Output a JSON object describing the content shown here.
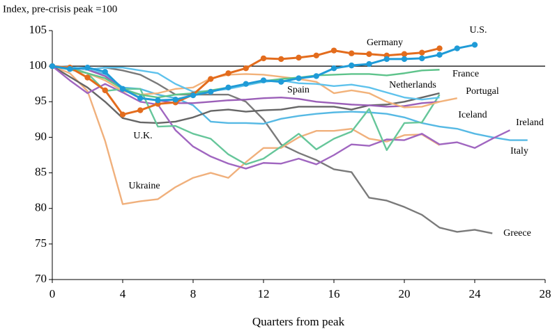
{
  "chart_data": {
    "type": "line",
    "title": "Index, pre-crisis peak =100",
    "x_label": "Quarters from peak",
    "xlim": [
      0,
      28
    ],
    "xticks": [
      0,
      4,
      8,
      12,
      16,
      20,
      24,
      28
    ],
    "ylim": [
      70,
      105
    ],
    "yticks": [
      70,
      75,
      80,
      85,
      90,
      95,
      100,
      105
    ],
    "reference_line": 100,
    "series": [
      {
        "name": "U.S.",
        "color": "#1f9bd7",
        "markers": true,
        "values": [
          100,
          99.6,
          99.8,
          99.2,
          96.8,
          95.5,
          95.2,
          95.3,
          95.9,
          96.4,
          97.0,
          97.5,
          98.0,
          97.8,
          98.3,
          98.6,
          99.7,
          100.1,
          100.3,
          101.0,
          101.0,
          101.1,
          101.6,
          102.5,
          103.0
        ]
      },
      {
        "name": "Germany",
        "color": "#e36c1d",
        "markers": true,
        "values": [
          100,
          99.8,
          98.4,
          96.6,
          93.2,
          93.8,
          94.7,
          94.9,
          96.0,
          98.2,
          99.0,
          99.7,
          101.1,
          101.0,
          101.2,
          101.5,
          102.2,
          101.8,
          101.7,
          101.5,
          101.7,
          101.9,
          102.5
        ]
      },
      {
        "name": "France",
        "color": "#5ec38b",
        "markers": false,
        "values": [
          100,
          99.8,
          99.0,
          98.3,
          96.8,
          96.0,
          95.6,
          96.0,
          96.2,
          96.6,
          97.0,
          97.5,
          97.9,
          98.2,
          98.4,
          98.7,
          98.8,
          98.9,
          98.9,
          98.7,
          99.0,
          99.4,
          99.5
        ]
      },
      {
        "name": "Netherlands",
        "color": "#5ec2ec",
        "markers": false,
        "values": [
          100,
          99.9,
          99.5,
          99.8,
          99.8,
          99.4,
          99.0,
          97.5,
          96.4,
          96.5,
          96.8,
          97.3,
          97.8,
          98.0,
          97.6,
          97.5,
          97.2,
          97.4,
          97.0,
          96.3,
          95.6,
          95.3,
          95.6
        ]
      },
      {
        "name": "Portugal",
        "color": "#f2b27a",
        "markers": false,
        "values": [
          100,
          99.7,
          99.0,
          98.0,
          96.5,
          96.0,
          96.2,
          96.8,
          97.0,
          98.3,
          98.8,
          98.9,
          98.8,
          98.5,
          98.2,
          97.8,
          96.2,
          96.6,
          96.2,
          95.0,
          94.2,
          94.3,
          95.0,
          95.5
        ]
      },
      {
        "name": "Spain",
        "color": "#9b5fb8",
        "markers": false,
        "values": [
          100,
          99.8,
          99.5,
          98.6,
          96.8,
          95.5,
          95.2,
          94.8,
          94.8,
          95.0,
          95.2,
          95.3,
          95.5,
          95.6,
          95.4,
          95.0,
          94.8,
          94.6,
          94.5,
          94.3,
          94.4,
          94.8,
          95.0
        ]
      },
      {
        "name": "Iceland",
        "color": "#66c69a",
        "markers": false,
        "values": [
          100,
          99.5,
          99.0,
          96.5,
          96.8,
          96.8,
          91.5,
          91.6,
          90.5,
          89.8,
          87.6,
          86.2,
          87.0,
          88.7,
          90.5,
          88.3,
          89.8,
          90.8,
          94.0,
          88.2,
          92.0,
          92.1,
          96.0
        ]
      },
      {
        "name": "Ireland",
        "color": "#a066c0",
        "markers": false,
        "values": [
          100,
          98.0,
          96.2,
          97.5,
          96.3,
          95.0,
          94.6,
          91.0,
          88.7,
          87.3,
          86.3,
          85.6,
          86.4,
          86.3,
          87.0,
          86.2,
          87.5,
          89.0,
          88.8,
          89.7,
          89.6,
          90.5,
          89.0,
          89.3,
          88.5,
          89.8,
          91.0
        ]
      },
      {
        "name": "U.K.",
        "color": "#666666",
        "markers": false,
        "values": [
          100,
          98.5,
          97.0,
          95.0,
          92.7,
          92.1,
          92.0,
          92.2,
          92.8,
          93.7,
          93.9,
          93.6,
          93.8,
          93.9,
          94.3,
          94.3,
          94.3,
          93.9,
          94.5,
          94.6,
          95.0,
          95.6,
          96.2
        ]
      },
      {
        "name": "Italy",
        "color": "#56b9e4",
        "markers": false,
        "values": [
          100,
          99.8,
          99.5,
          98.9,
          97.0,
          96.8,
          96.0,
          95.5,
          94.5,
          92.2,
          92.0,
          92.0,
          91.9,
          92.6,
          93.0,
          93.3,
          93.5,
          93.6,
          93.5,
          93.3,
          92.8,
          92.0,
          91.5,
          91.2,
          90.5,
          90.0,
          89.6,
          89.6
        ]
      },
      {
        "name": "Ukraine",
        "color": "#f0b07c",
        "markers": false,
        "values": [
          100,
          99.0,
          96.5,
          89.5,
          80.6,
          81.0,
          81.3,
          83.0,
          84.3,
          85.0,
          84.3,
          86.5,
          88.5,
          88.5,
          90.0,
          90.9,
          90.9,
          91.2,
          89.8,
          89.4,
          90.3,
          90.4,
          88.9
        ]
      },
      {
        "name": "Greece",
        "color": "#7a7a7a",
        "markers": false,
        "values": [
          100,
          99.8,
          99.5,
          99.8,
          99.4,
          98.8,
          97.5,
          96.0,
          96.0,
          96.0,
          96.0,
          95.0,
          92.5,
          89.0,
          87.8,
          86.8,
          85.5,
          85.1,
          81.5,
          81.1,
          80.2,
          79.1,
          77.3,
          76.7,
          77.0,
          76.5
        ]
      }
    ]
  }
}
